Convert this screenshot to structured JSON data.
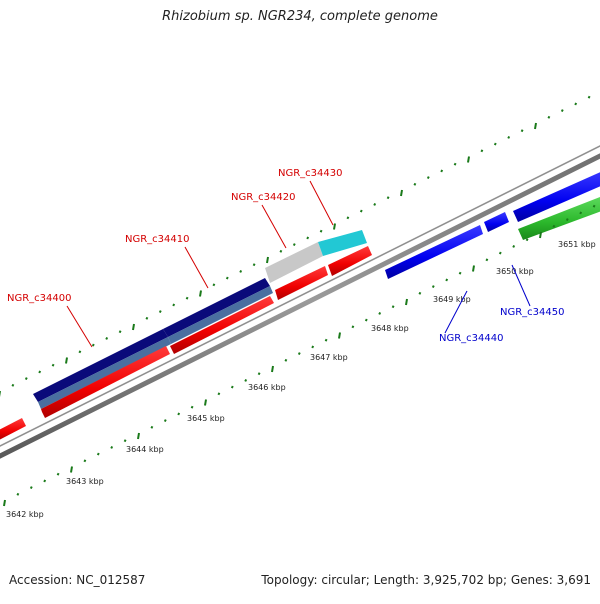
{
  "title": "Rhizobium sp. NGR234, complete genome",
  "footer": {
    "accession": "Accession: NC_012587",
    "summary": "Topology: circular; Length: 3,925,702 bp; Genes: 3,691"
  },
  "colors": {
    "backbone": "#808080",
    "tick": "#1a7a1a",
    "scale_label": "#222222",
    "label_reverse": "#d40000",
    "label_forward": "#0000cc"
  },
  "scale_labels": [
    "3642 kbp",
    "3643 kbp",
    "3644 kbp",
    "3645 kbp",
    "3646 kbp",
    "3647 kbp",
    "3648 kbp",
    "3649 kbp",
    "3650 kbp",
    "3651 kbp"
  ],
  "gene_labels": [
    {
      "text": "NGR_c34400",
      "strand": "reverse"
    },
    {
      "text": "NGR_c34410",
      "strand": "reverse"
    },
    {
      "text": "NGR_c34420",
      "strand": "reverse"
    },
    {
      "text": "NGR_c34430",
      "strand": "reverse"
    },
    {
      "text": "NGR_c34440",
      "strand": "forward"
    },
    {
      "text": "NGR_c34450",
      "strand": "forward"
    }
  ]
}
